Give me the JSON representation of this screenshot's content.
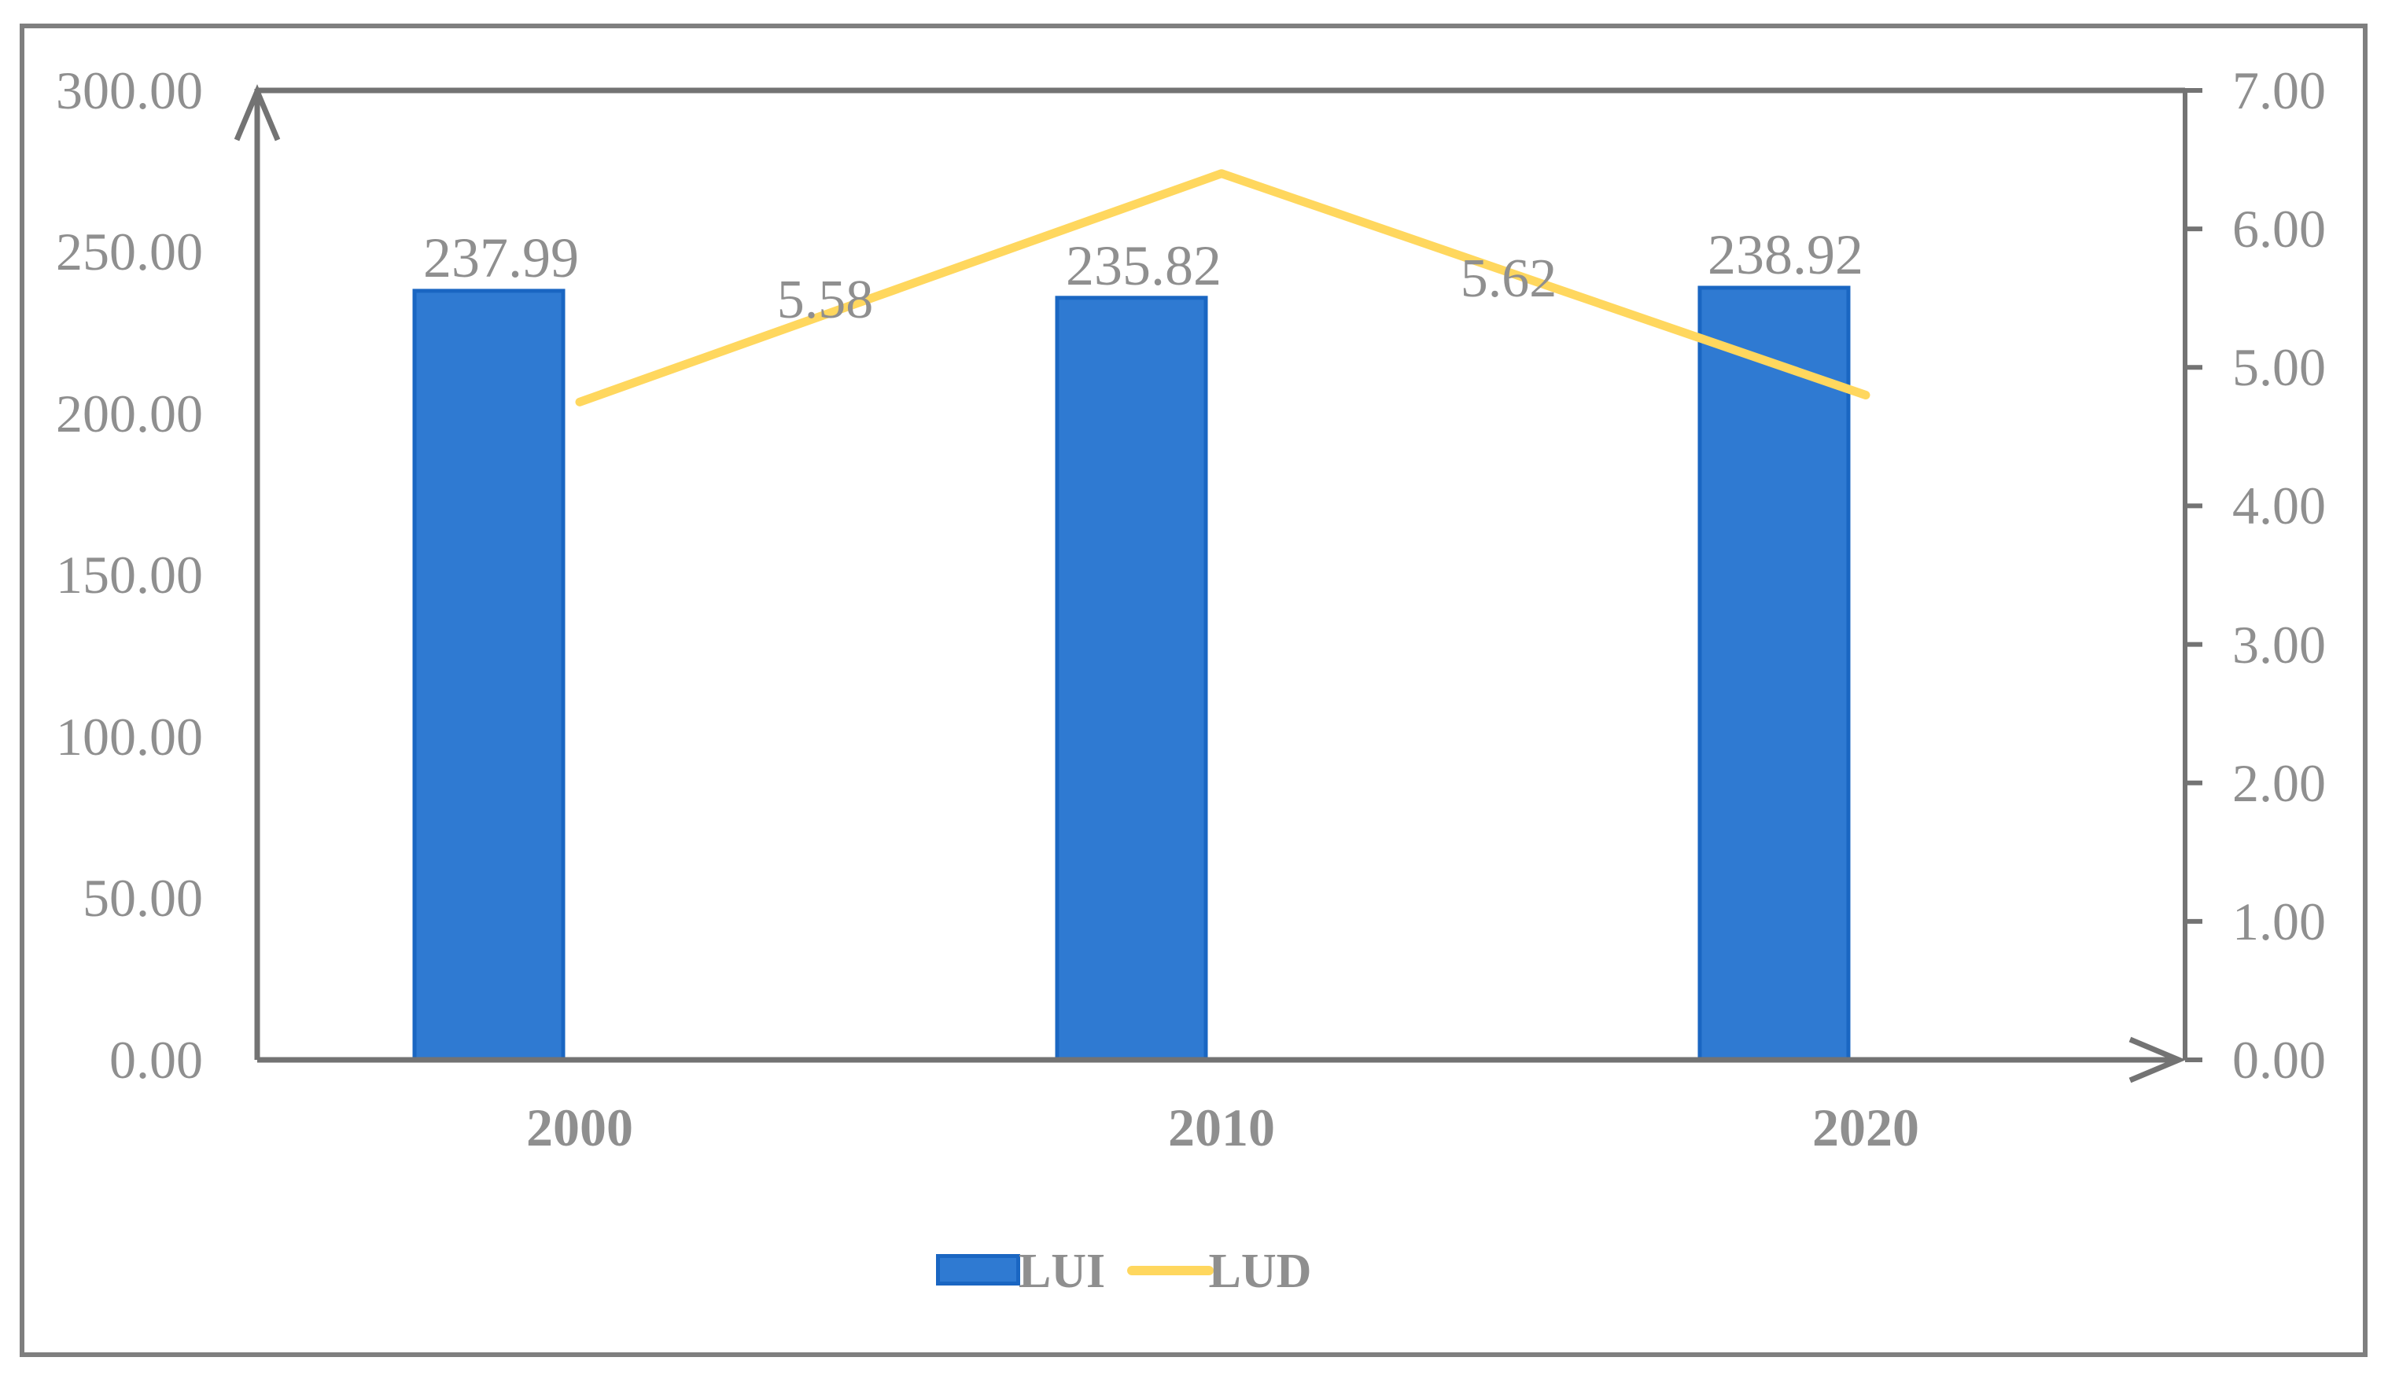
{
  "colors": {
    "frame": "#7f7f7f",
    "axis": "#737373",
    "text_gray": "#8f8f8f",
    "bar_fill": "#2f7ad2",
    "bar_border": "#1a66c2",
    "line": "#ffd75e"
  },
  "legend": {
    "position": "bottom",
    "items": [
      {
        "label": "LUI",
        "marker": "bar-swatch"
      },
      {
        "label": "LUD",
        "marker": "line-swatch"
      }
    ]
  },
  "chart_data": {
    "type": "bar",
    "subtype": "bar+line combo, dual axis",
    "categories": [
      "2000",
      "2010",
      "2020"
    ],
    "series": [
      {
        "name": "LUI",
        "type": "bar",
        "axis": "left",
        "values": [
          237.99,
          235.82,
          238.92
        ],
        "value_labels": [
          "237.99",
          "235.82",
          "238.92"
        ]
      },
      {
        "name": "LUD",
        "type": "line",
        "axis": "right",
        "values": [
          4.75,
          6.4,
          4.8
        ],
        "segment_labels": [
          "5.58",
          "5.62"
        ]
      }
    ],
    "left_axis": {
      "range": [
        0,
        300
      ],
      "tick_step": 50,
      "tick_labels": [
        "300.00",
        "250.00",
        "200.00",
        "150.00",
        "100.00",
        "50.00",
        "0.00"
      ]
    },
    "right_axis": {
      "range": [
        0,
        7
      ],
      "tick_step": 1,
      "tick_labels": [
        "7.00",
        "6.00",
        "5.00",
        "4.00",
        "3.00",
        "2.00",
        "1.00",
        "0.00"
      ]
    },
    "grid": false,
    "legend_position": "bottom"
  }
}
